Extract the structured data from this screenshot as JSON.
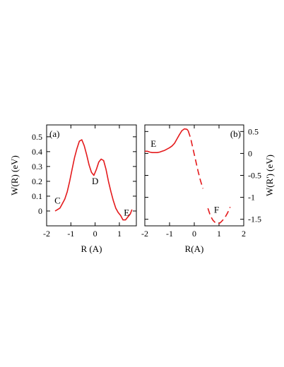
{
  "chart_data": [
    {
      "type": "line",
      "panel_label": "(a)",
      "xlabel": "R (A)",
      "ylabel": "W(R) (eV)",
      "xlim": [
        -2,
        1.7
      ],
      "ylim": [
        -0.1,
        0.58
      ],
      "xticks": [
        "-2",
        "-1",
        "0",
        "1"
      ],
      "xtick_values": [
        -2,
        -1,
        0,
        1
      ],
      "yticks": [
        "0",
        "0.1",
        "0.2",
        "0.3",
        "0.4",
        "0.5"
      ],
      "ytick_values": [
        0,
        0.1,
        0.2,
        0.3,
        0.4,
        0.5
      ],
      "color": "#e41a1c",
      "series": [
        {
          "style": "solid",
          "x": [
            -1.65,
            -1.55,
            -1.45,
            -1.35,
            -1.25,
            -1.15,
            -1.05,
            -0.95,
            -0.85,
            -0.75,
            -0.65,
            -0.55,
            -0.45,
            -0.35,
            -0.25,
            -0.15,
            -0.05,
            0.05,
            0.15,
            0.25,
            0.35,
            0.45,
            0.55,
            0.65,
            0.75,
            0.85,
            0.95,
            1.05,
            1.15,
            1.25,
            1.35,
            1.45,
            1.52
          ],
          "y": [
            0.0,
            0.01,
            0.02,
            0.05,
            0.08,
            0.13,
            0.2,
            0.28,
            0.36,
            0.42,
            0.47,
            0.48,
            0.44,
            0.38,
            0.31,
            0.26,
            0.24,
            0.28,
            0.33,
            0.35,
            0.34,
            0.28,
            0.2,
            0.13,
            0.07,
            0.02,
            -0.01,
            -0.03,
            -0.06,
            -0.06,
            -0.04,
            -0.02,
            0.01
          ]
        }
      ],
      "annotations": [
        {
          "text": "C",
          "x": -1.55,
          "y": 0.05
        },
        {
          "text": "D",
          "x": 0.0,
          "y": 0.18
        },
        {
          "text": "E",
          "x": 1.3,
          "y": -0.03
        }
      ]
    },
    {
      "type": "line",
      "panel_label": "(b)",
      "xlabel": "R(A)",
      "ylabel": "W(R') (eV)",
      "xlim": [
        -2,
        2
      ],
      "ylim": [
        -1.65,
        0.65
      ],
      "xticks": [
        "-2",
        "-1",
        "0",
        "1",
        "2"
      ],
      "xtick_values": [
        -2,
        -1,
        0,
        1,
        2
      ],
      "yticks": [
        "0.5",
        "0",
        "-0.5",
        "-1",
        "-1.5"
      ],
      "ytick_values": [
        0.5,
        0,
        -0.5,
        -1,
        -1.5
      ],
      "color": "#e41a1c",
      "series": [
        {
          "style": "solid",
          "x": [
            -2.0,
            -1.9,
            -1.8,
            -1.7,
            -1.6,
            -1.5,
            -1.4,
            -1.3,
            -1.2,
            -1.1,
            -1.0,
            -0.9,
            -0.8,
            -0.7,
            -0.6,
            -0.5,
            -0.4,
            -0.3,
            -0.25
          ],
          "y": [
            0.05,
            0.05,
            0.03,
            0.02,
            0.02,
            0.02,
            0.03,
            0.05,
            0.07,
            0.1,
            0.13,
            0.17,
            0.23,
            0.33,
            0.43,
            0.52,
            0.56,
            0.55,
            0.52
          ]
        },
        {
          "style": "dashed",
          "x": [
            -0.25,
            -0.15,
            -0.05,
            0.05,
            0.15,
            0.25,
            0.35
          ],
          "y": [
            0.52,
            0.35,
            0.1,
            -0.15,
            -0.4,
            -0.62,
            -0.8
          ]
        },
        {
          "style": "dashed",
          "x": [
            0.55,
            0.65,
            0.75,
            0.85,
            0.95,
            1.05,
            1.15,
            1.25,
            1.35,
            1.45
          ],
          "y": [
            -1.25,
            -1.42,
            -1.52,
            -1.58,
            -1.6,
            -1.58,
            -1.52,
            -1.45,
            -1.35,
            -1.22
          ]
        }
      ],
      "annotations": [
        {
          "text": "E",
          "x": -1.65,
          "y": 0.15
        },
        {
          "text": "F",
          "x": 0.9,
          "y": -1.35
        }
      ]
    }
  ]
}
